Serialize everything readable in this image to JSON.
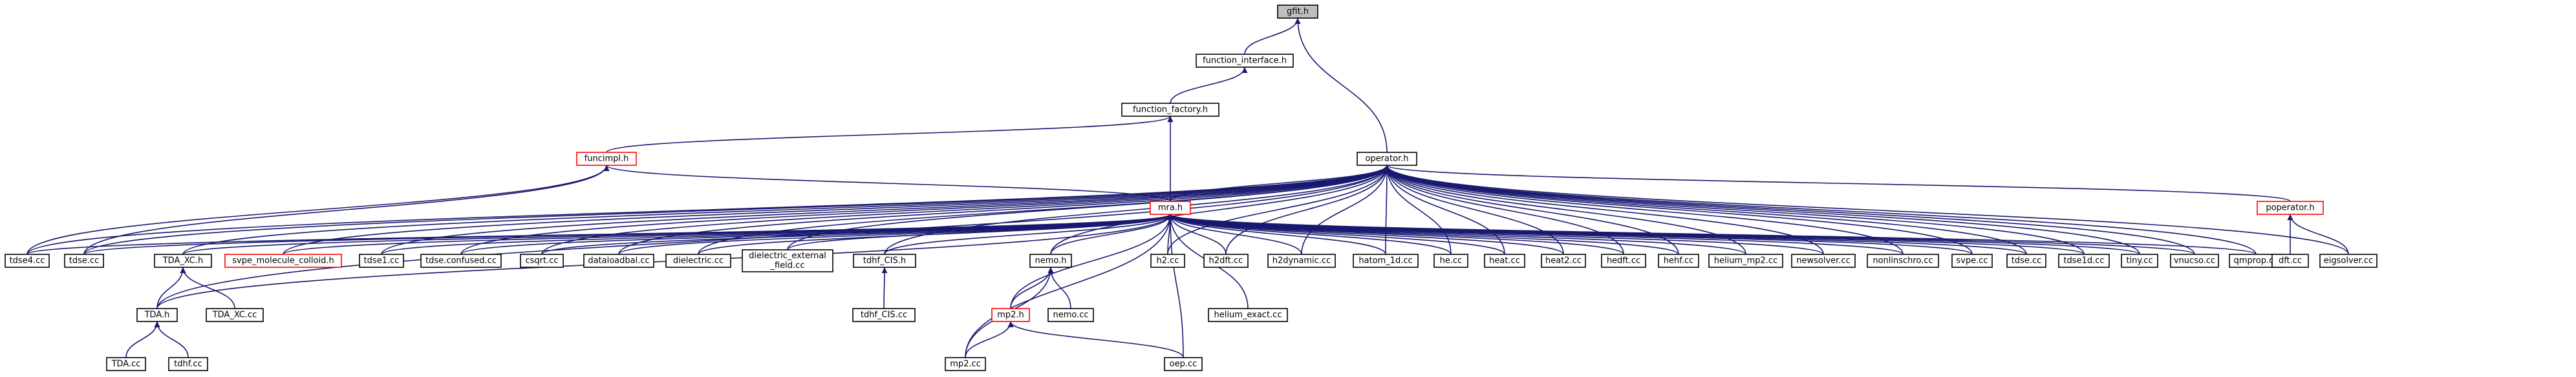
{
  "colors": {
    "edge": "#191970",
    "node_border": "#000000",
    "node_border_truncated": "#ff0000",
    "root_fill": "#bfbfbf",
    "node_fill": "#ffffff"
  },
  "nodes": [
    {
      "id": "gfit_h",
      "label": "gfit.h",
      "root": true
    },
    {
      "id": "function_interface_h",
      "label": "function_interface.h"
    },
    {
      "id": "function_factory_h",
      "label": "function_factory.h"
    },
    {
      "id": "funcimpl_h",
      "label": "funcimpl.h",
      "truncated": true
    },
    {
      "id": "operator_h",
      "label": "operator.h"
    },
    {
      "id": "mra_h",
      "label": "mra.h",
      "truncated": true
    },
    {
      "id": "poperator_h",
      "label": "poperator.h",
      "truncated": true
    },
    {
      "id": "tdse4_cc",
      "label": "tdse4.cc"
    },
    {
      "id": "tdse_cc_left",
      "label": "tdse.cc"
    },
    {
      "id": "TDA_XC_h",
      "label": "TDA_XC.h"
    },
    {
      "id": "svpe_molecule_colloid_h",
      "label": "svpe_molecule_colloid.h",
      "truncated": true
    },
    {
      "id": "tdse1_cc",
      "label": "tdse1.cc"
    },
    {
      "id": "tdse_confused_cc",
      "label": "tdse.confused.cc"
    },
    {
      "id": "csqrt_cc",
      "label": "csqrt.cc"
    },
    {
      "id": "dataloadbal_cc",
      "label": "dataloadbal.cc"
    },
    {
      "id": "dielectric_cc",
      "label": "dielectric.cc"
    },
    {
      "id": "dielectric_external_field_cc",
      "label": "dielectric_external\n_field.cc"
    },
    {
      "id": "tdhf_CIS_h",
      "label": "tdhf_CIS.h"
    },
    {
      "id": "nemo_h",
      "label": "nemo.h"
    },
    {
      "id": "h2_cc",
      "label": "h2.cc"
    },
    {
      "id": "h2dft_cc",
      "label": "h2dft.cc"
    },
    {
      "id": "h2dynamic_cc",
      "label": "h2dynamic.cc"
    },
    {
      "id": "hatom_1d_cc",
      "label": "hatom_1d.cc"
    },
    {
      "id": "he_cc",
      "label": "he.cc"
    },
    {
      "id": "heat_cc",
      "label": "heat.cc"
    },
    {
      "id": "heat2_cc",
      "label": "heat2.cc"
    },
    {
      "id": "hedft_cc",
      "label": "hedft.cc"
    },
    {
      "id": "hehf_cc",
      "label": "hehf.cc"
    },
    {
      "id": "helium_mp2_cc",
      "label": "helium_mp2.cc"
    },
    {
      "id": "newsolver_cc",
      "label": "newsolver.cc"
    },
    {
      "id": "nonlinschro_cc",
      "label": "nonlinschro.cc"
    },
    {
      "id": "svpe_cc",
      "label": "svpe.cc"
    },
    {
      "id": "tdse_cc_right",
      "label": "tdse.cc"
    },
    {
      "id": "tdse1d_cc",
      "label": "tdse1d.cc"
    },
    {
      "id": "tiny_cc",
      "label": "tiny.cc"
    },
    {
      "id": "vnucso_cc",
      "label": "vnucso.cc"
    },
    {
      "id": "qmprop_cc",
      "label": "qmprop.cc"
    },
    {
      "id": "dft_cc",
      "label": "dft.cc"
    },
    {
      "id": "eigsolver_cc",
      "label": "eigsolver.cc"
    },
    {
      "id": "TDA_h",
      "label": "TDA.h"
    },
    {
      "id": "TDA_XC_cc",
      "label": "TDA_XC.cc"
    },
    {
      "id": "tdhf_CIS_cc",
      "label": "tdhf_CIS.cc"
    },
    {
      "id": "mp2_h",
      "label": "mp2.h",
      "truncated": true
    },
    {
      "id": "nemo_cc",
      "label": "nemo.cc"
    },
    {
      "id": "helium_exact_cc",
      "label": "helium_exact.cc"
    },
    {
      "id": "TDA_cc",
      "label": "TDA.cc"
    },
    {
      "id": "tdhf_cc",
      "label": "tdhf.cc"
    },
    {
      "id": "mp2_cc",
      "label": "mp2.cc"
    },
    {
      "id": "oep_cc",
      "label": "oep.cc"
    }
  ],
  "edges": [
    [
      "function_interface_h",
      "gfit_h"
    ],
    [
      "operator_h",
      "gfit_h"
    ],
    [
      "function_factory_h",
      "function_interface_h"
    ],
    [
      "funcimpl_h",
      "function_factory_h"
    ],
    [
      "mra_h",
      "function_factory_h"
    ],
    [
      "mra_h",
      "funcimpl_h"
    ],
    [
      "tdse4_cc",
      "funcimpl_h"
    ],
    [
      "tdse_cc_left",
      "funcimpl_h"
    ],
    [
      "mra_h",
      "operator_h"
    ],
    [
      "tdse4_cc",
      "operator_h"
    ],
    [
      "tdse_cc_left",
      "operator_h"
    ],
    [
      "TDA_XC_h",
      "operator_h"
    ],
    [
      "TDA_h",
      "operator_h"
    ],
    [
      "svpe_molecule_colloid_h",
      "operator_h"
    ],
    [
      "tdse1_cc",
      "operator_h"
    ],
    [
      "tdse_confused_cc",
      "operator_h"
    ],
    [
      "csqrt_cc",
      "operator_h"
    ],
    [
      "dataloadbal_cc",
      "operator_h"
    ],
    [
      "dielectric_cc",
      "operator_h"
    ],
    [
      "dielectric_external_field_cc",
      "operator_h"
    ],
    [
      "tdhf_CIS_h",
      "operator_h"
    ],
    [
      "nemo_h",
      "operator_h"
    ],
    [
      "h2_cc",
      "operator_h"
    ],
    [
      "h2dft_cc",
      "operator_h"
    ],
    [
      "h2dynamic_cc",
      "operator_h"
    ],
    [
      "hatom_1d_cc",
      "operator_h"
    ],
    [
      "he_cc",
      "operator_h"
    ],
    [
      "heat_cc",
      "operator_h"
    ],
    [
      "heat2_cc",
      "operator_h"
    ],
    [
      "hedft_cc",
      "operator_h"
    ],
    [
      "hehf_cc",
      "operator_h"
    ],
    [
      "helium_mp2_cc",
      "operator_h"
    ],
    [
      "newsolver_cc",
      "operator_h"
    ],
    [
      "nonlinschro_cc",
      "operator_h"
    ],
    [
      "svpe_cc",
      "operator_h"
    ],
    [
      "tdse_cc_right",
      "operator_h"
    ],
    [
      "tdse1d_cc",
      "operator_h"
    ],
    [
      "tiny_cc",
      "operator_h"
    ],
    [
      "vnucso_cc",
      "operator_h"
    ],
    [
      "qmprop_cc",
      "operator_h"
    ],
    [
      "poperator_h",
      "operator_h"
    ],
    [
      "eigsolver_cc",
      "operator_h"
    ],
    [
      "tdse4_cc",
      "mra_h"
    ],
    [
      "tdse_cc_left",
      "mra_h"
    ],
    [
      "TDA_XC_h",
      "mra_h"
    ],
    [
      "TDA_h",
      "mra_h"
    ],
    [
      "svpe_molecule_colloid_h",
      "mra_h"
    ],
    [
      "tdse1_cc",
      "mra_h"
    ],
    [
      "tdse_confused_cc",
      "mra_h"
    ],
    [
      "csqrt_cc",
      "mra_h"
    ],
    [
      "dataloadbal_cc",
      "mra_h"
    ],
    [
      "dielectric_cc",
      "mra_h"
    ],
    [
      "dielectric_external_field_cc",
      "mra_h"
    ],
    [
      "tdhf_CIS_h",
      "mra_h"
    ],
    [
      "nemo_h",
      "mra_h"
    ],
    [
      "mp2_h",
      "mra_h"
    ],
    [
      "mp2_cc",
      "mra_h"
    ],
    [
      "oep_cc",
      "mra_h"
    ],
    [
      "helium_exact_cc",
      "mra_h"
    ],
    [
      "h2_cc",
      "mra_h"
    ],
    [
      "h2dft_cc",
      "mra_h"
    ],
    [
      "h2dynamic_cc",
      "mra_h"
    ],
    [
      "hatom_1d_cc",
      "mra_h"
    ],
    [
      "he_cc",
      "mra_h"
    ],
    [
      "heat_cc",
      "mra_h"
    ],
    [
      "heat2_cc",
      "mra_h"
    ],
    [
      "hedft_cc",
      "mra_h"
    ],
    [
      "hehf_cc",
      "mra_h"
    ],
    [
      "helium_mp2_cc",
      "mra_h"
    ],
    [
      "newsolver_cc",
      "mra_h"
    ],
    [
      "nonlinschro_cc",
      "mra_h"
    ],
    [
      "svpe_cc",
      "mra_h"
    ],
    [
      "tdse_cc_right",
      "mra_h"
    ],
    [
      "tdse1d_cc",
      "mra_h"
    ],
    [
      "tiny_cc",
      "mra_h"
    ],
    [
      "vnucso_cc",
      "mra_h"
    ],
    [
      "qmprop_cc",
      "mra_h"
    ],
    [
      "dft_cc",
      "poperator_h"
    ],
    [
      "eigsolver_cc",
      "poperator_h"
    ],
    [
      "TDA_h",
      "TDA_XC_h"
    ],
    [
      "TDA_XC_cc",
      "TDA_XC_h"
    ],
    [
      "TDA_cc",
      "TDA_h"
    ],
    [
      "tdhf_cc",
      "TDA_h"
    ],
    [
      "tdhf_CIS_cc",
      "tdhf_CIS_h"
    ],
    [
      "mp2_h",
      "nemo_h"
    ],
    [
      "nemo_cc",
      "nemo_h"
    ],
    [
      "mp2_cc",
      "nemo_h"
    ],
    [
      "mp2_cc",
      "mp2_h"
    ],
    [
      "oep_cc",
      "mp2_h"
    ]
  ]
}
